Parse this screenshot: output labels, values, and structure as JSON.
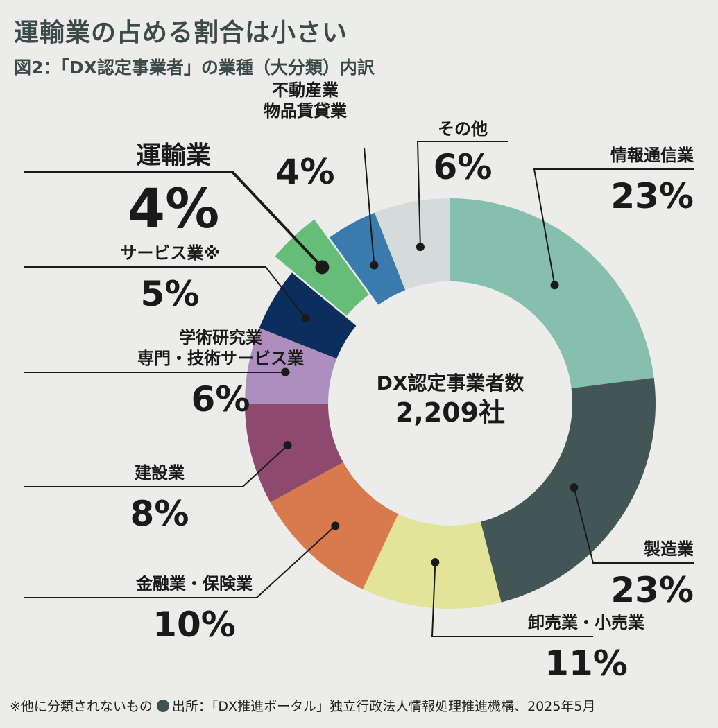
{
  "title": "運輸業の占める割合は小さい",
  "subtitle": "図2：「DX認定事業者」の業種（大分類）内訳",
  "chart_data": {
    "type": "pie",
    "center_label": [
      "DX認定事業者数",
      "2,209社"
    ],
    "highlight": "運輸業",
    "slices": [
      {
        "label": [
          "情報通信業"
        ],
        "value": 23,
        "value_text": "23%",
        "color": "#86bfae"
      },
      {
        "label": [
          "製造業"
        ],
        "value": 23,
        "value_text": "23%",
        "color": "#435656"
      },
      {
        "label": [
          "卸売業・小売業"
        ],
        "value": 11,
        "value_text": "11%",
        "color": "#e3e39a"
      },
      {
        "label": [
          "金融業・保険業"
        ],
        "value": 10,
        "value_text": "10%",
        "color": "#d9794e"
      },
      {
        "label": [
          "建設業"
        ],
        "value": 8,
        "value_text": "8%",
        "color": "#8e4a6e"
      },
      {
        "label": [
          "学術研究業",
          "専門・技術サービス業"
        ],
        "value": 6,
        "value_text": "6%",
        "color": "#ad8ebf"
      },
      {
        "label": [
          "サービス業※"
        ],
        "value": 5,
        "value_text": "5%",
        "color": "#0b2e5c"
      },
      {
        "label": [
          "運輸業"
        ],
        "value": 4,
        "value_text": "4%",
        "color": "#66bd78"
      },
      {
        "label": [
          "不動産業",
          "物品賃貸業"
        ],
        "value": 4,
        "value_text": "4%",
        "color": "#3a7aad"
      },
      {
        "label": [
          "その他"
        ],
        "value": 6,
        "value_text": "6%",
        "color": "#d5dbdb"
      }
    ]
  },
  "footer": {
    "note": "※他に分類されないもの",
    "source": "出所：「DX推進ポータル」独立行政法人情報処理推進機構、2025年5月"
  }
}
